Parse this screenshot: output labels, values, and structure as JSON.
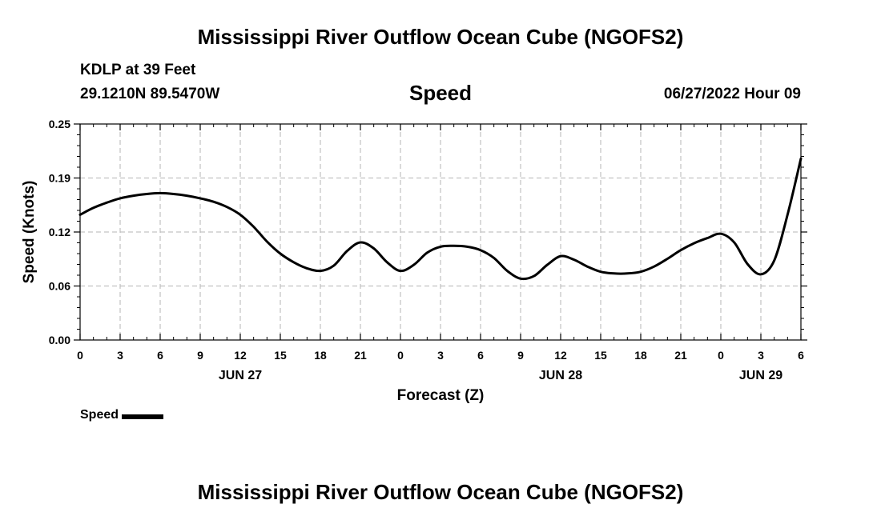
{
  "header": {
    "title": "Mississippi River Outflow Ocean Cube (NGOFS2)",
    "station": "KDLP at 39 Feet",
    "coords": "29.1210N  89.5470W",
    "variable": "Speed",
    "datetime": "06/27/2022 Hour 09"
  },
  "footer": {
    "title": "Mississippi River Outflow Ocean Cube (NGOFS2)"
  },
  "legend": {
    "label": "Speed",
    "color": "#000000"
  },
  "chart_data": {
    "type": "line",
    "title": "Speed",
    "xlabel": "Forecast (Z)",
    "ylabel": "Speed (Knots)",
    "x_unit": "hours since 06/27/2022 00Z",
    "xlim": [
      0,
      54
    ],
    "ylim": [
      0,
      0.25
    ],
    "grid": true,
    "yticks": [
      "0.00",
      "0.06",
      "0.12",
      "0.19",
      "0.25"
    ],
    "ytick_values": [
      0,
      0.0625,
      0.125,
      0.1875,
      0.25
    ],
    "xticks": [
      {
        "x": 0,
        "label": "0"
      },
      {
        "x": 3,
        "label": "3"
      },
      {
        "x": 6,
        "label": "6"
      },
      {
        "x": 9,
        "label": "9"
      },
      {
        "x": 12,
        "label": "12"
      },
      {
        "x": 15,
        "label": "15"
      },
      {
        "x": 18,
        "label": "18"
      },
      {
        "x": 21,
        "label": "21"
      },
      {
        "x": 24,
        "label": "0"
      },
      {
        "x": 27,
        "label": "3"
      },
      {
        "x": 30,
        "label": "6"
      },
      {
        "x": 33,
        "label": "9"
      },
      {
        "x": 36,
        "label": "12"
      },
      {
        "x": 39,
        "label": "15"
      },
      {
        "x": 42,
        "label": "18"
      },
      {
        "x": 45,
        "label": "21"
      },
      {
        "x": 48,
        "label": "0"
      },
      {
        "x": 51,
        "label": "3"
      },
      {
        "x": 54,
        "label": "6"
      }
    ],
    "date_labels": [
      {
        "x": 12,
        "label": "JUN 27"
      },
      {
        "x": 36,
        "label": "JUN 28"
      },
      {
        "x": 51,
        "label": "JUN 29"
      }
    ],
    "series": [
      {
        "name": "Speed",
        "x": [
          0,
          1,
          2,
          3,
          4,
          5,
          6,
          7,
          8,
          9,
          10,
          11,
          12,
          13,
          14,
          15,
          16,
          17,
          18,
          19,
          20,
          21,
          22,
          23,
          24,
          25,
          26,
          27,
          28,
          29,
          30,
          31,
          32,
          33,
          34,
          35,
          36,
          37,
          38,
          39,
          40,
          41,
          42,
          43,
          44,
          45,
          46,
          47,
          48,
          49,
          50,
          51,
          52,
          53,
          54
        ],
        "y": [
          0.145,
          0.153,
          0.159,
          0.164,
          0.167,
          0.169,
          0.17,
          0.169,
          0.167,
          0.164,
          0.16,
          0.154,
          0.145,
          0.131,
          0.114,
          0.1,
          0.09,
          0.083,
          0.08,
          0.086,
          0.103,
          0.113,
          0.106,
          0.09,
          0.08,
          0.087,
          0.101,
          0.108,
          0.109,
          0.108,
          0.104,
          0.095,
          0.08,
          0.071,
          0.074,
          0.087,
          0.097,
          0.093,
          0.085,
          0.079,
          0.077,
          0.077,
          0.079,
          0.085,
          0.094,
          0.104,
          0.112,
          0.118,
          0.123,
          0.113,
          0.088,
          0.076,
          0.092,
          0.145,
          0.21
        ]
      }
    ]
  }
}
